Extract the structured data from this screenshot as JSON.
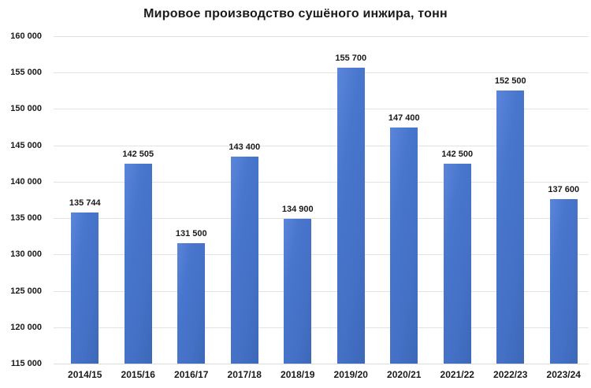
{
  "chart_data": {
    "type": "bar",
    "title": "Мировое производство сушёного инжира, тонн",
    "categories": [
      "2014/15",
      "2015/16",
      "2016/17",
      "2017/18",
      "2018/19",
      "2019/20",
      "2020/21",
      "2021/22",
      "2022/23",
      "2023/24"
    ],
    "values": [
      135744,
      142505,
      131500,
      143400,
      134900,
      155700,
      147400,
      142500,
      152500,
      137600
    ],
    "value_labels": [
      "135 744",
      "142 505",
      "131 500",
      "143 400",
      "134 900",
      "155 700",
      "147 400",
      "142 500",
      "152 500",
      "137 600"
    ],
    "xlabel": "",
    "ylabel": "",
    "ylim": [
      115000,
      160000
    ],
    "ytick_step": 5000,
    "ytick_labels": [
      "160 000",
      "155 000",
      "150 000",
      "145 000",
      "140 000",
      "135 000",
      "130 000",
      "125 000",
      "120 000",
      "115 000"
    ],
    "grid": true,
    "legend": "none",
    "bar_color": "#4472C4",
    "text_color": "#1a1a1a",
    "gridline_color": "#e3e3e3",
    "background": "#ffffff"
  }
}
